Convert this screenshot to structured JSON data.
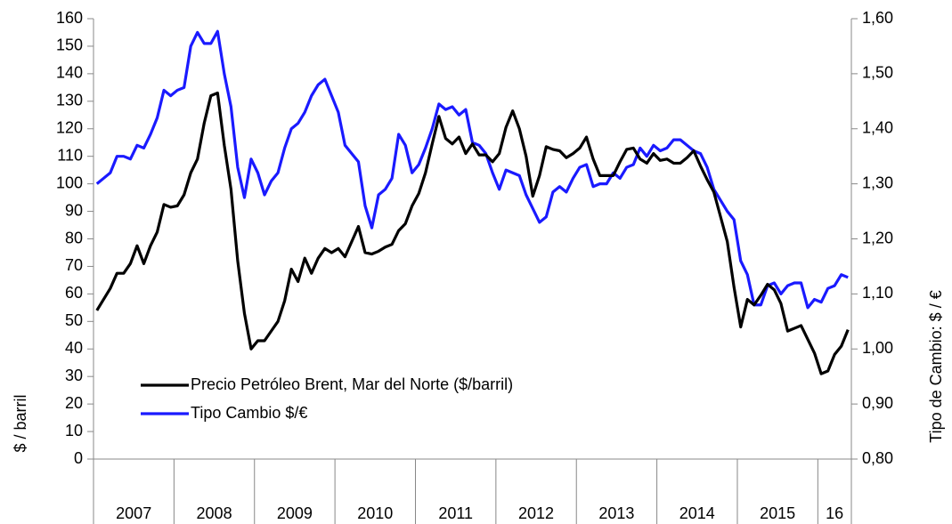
{
  "chart_data": {
    "type": "line",
    "y_axis_label": "$ / barril",
    "y2_axis_label": "Tipo de Cambio: $ / €",
    "categories": [
      "2007",
      null,
      null,
      null,
      null,
      null,
      null,
      null,
      null,
      null,
      null,
      null,
      "2008",
      null,
      null,
      null,
      null,
      null,
      null,
      null,
      null,
      null,
      null,
      null,
      "2009",
      null,
      null,
      null,
      null,
      null,
      null,
      null,
      null,
      null,
      null,
      null,
      "2010",
      null,
      null,
      null,
      null,
      null,
      null,
      null,
      null,
      null,
      null,
      null,
      "2011",
      null,
      null,
      null,
      null,
      null,
      null,
      null,
      null,
      null,
      null,
      null,
      "2012",
      null,
      null,
      null,
      null,
      null,
      null,
      null,
      null,
      null,
      null,
      null,
      "2013",
      null,
      null,
      null,
      null,
      null,
      null,
      null,
      null,
      null,
      null,
      null,
      "2014",
      null,
      null,
      null,
      null,
      null,
      null,
      null,
      null,
      null,
      null,
      null,
      "2015",
      null,
      null,
      null,
      null,
      null,
      null,
      null,
      null,
      null,
      null,
      null,
      "16",
      null,
      null,
      null,
      null
    ],
    "series": [
      {
        "name": "Precio Petróleo Brent, Mar del Norte ($/barril)",
        "color": "#000000",
        "axis": "y",
        "values": [
          54,
          58,
          62,
          67.5,
          67.5,
          71,
          77.5,
          71,
          77.5,
          82.5,
          92.5,
          91.5,
          92,
          96,
          104,
          109,
          122,
          132,
          133,
          114,
          98,
          72,
          53,
          40,
          43,
          43,
          46.5,
          50,
          57.5,
          69,
          64.5,
          73,
          67.5,
          73,
          76.5,
          75,
          76.5,
          73.5,
          79,
          84.5,
          75,
          74.5,
          75.5,
          77,
          78,
          83,
          85.5,
          92,
          96.5,
          104,
          114.5,
          124.5,
          116.5,
          114.5,
          117,
          111,
          114.5,
          110.5,
          110.5,
          108,
          111,
          120.5,
          126.5,
          120,
          110,
          95.5,
          103,
          113.5,
          112.5,
          112,
          109.5,
          111,
          113,
          117,
          109,
          103,
          103,
          103,
          108,
          112.5,
          113,
          109,
          107.5,
          111,
          108.5,
          109,
          107.5,
          107.5,
          109.5,
          112,
          106.5,
          101.5,
          97,
          88,
          79,
          62.5,
          48,
          58,
          56,
          59.5,
          63.5,
          61.5,
          56.5,
          46.5,
          47.5,
          48.5,
          43.5,
          38.5,
          31,
          32,
          38,
          41,
          47
        ]
      },
      {
        "name": "Tipo Cambio $/€",
        "color": "#1a1aff",
        "axis": "y2",
        "values": [
          1.3,
          1.31,
          1.32,
          1.35,
          1.35,
          1.345,
          1.37,
          1.365,
          1.39,
          1.42,
          1.47,
          1.46,
          1.47,
          1.475,
          1.55,
          1.575,
          1.555,
          1.555,
          1.577,
          1.5,
          1.44,
          1.33,
          1.275,
          1.345,
          1.32,
          1.28,
          1.305,
          1.32,
          1.365,
          1.4,
          1.41,
          1.43,
          1.46,
          1.48,
          1.49,
          1.46,
          1.43,
          1.37,
          1.355,
          1.34,
          1.26,
          1.22,
          1.28,
          1.29,
          1.31,
          1.39,
          1.37,
          1.32,
          1.335,
          1.365,
          1.4,
          1.445,
          1.435,
          1.44,
          1.425,
          1.435,
          1.375,
          1.37,
          1.355,
          1.32,
          1.29,
          1.325,
          1.32,
          1.315,
          1.28,
          1.255,
          1.23,
          1.24,
          1.285,
          1.295,
          1.285,
          1.31,
          1.33,
          1.335,
          1.295,
          1.3,
          1.3,
          1.32,
          1.31,
          1.33,
          1.335,
          1.365,
          1.35,
          1.37,
          1.36,
          1.365,
          1.38,
          1.38,
          1.37,
          1.36,
          1.355,
          1.33,
          1.29,
          1.27,
          1.25,
          1.235,
          1.16,
          1.135,
          1.08,
          1.08,
          1.115,
          1.12,
          1.1,
          1.115,
          1.12,
          1.12,
          1.075,
          1.09,
          1.085,
          1.11,
          1.115,
          1.135,
          1.13
        ]
      }
    ],
    "ylim": [
      0,
      160
    ],
    "yticks": [
      0,
      10,
      20,
      30,
      40,
      50,
      60,
      70,
      80,
      90,
      100,
      110,
      120,
      130,
      140,
      150,
      160
    ],
    "y2lim": [
      0.8,
      1.6
    ],
    "y2ticks": [
      {
        "value": 0.8,
        "label": "0,80"
      },
      {
        "value": 0.9,
        "label": "0,90"
      },
      {
        "value": 1.0,
        "label": "1,00"
      },
      {
        "value": 1.1,
        "label": "1,10"
      },
      {
        "value": 1.2,
        "label": "1,20"
      },
      {
        "value": 1.3,
        "label": "1,30"
      },
      {
        "value": 1.4,
        "label": "1,40"
      },
      {
        "value": 1.5,
        "label": "1,50"
      },
      {
        "value": 1.6,
        "label": "1,60"
      }
    ],
    "legend": "lower-left"
  }
}
